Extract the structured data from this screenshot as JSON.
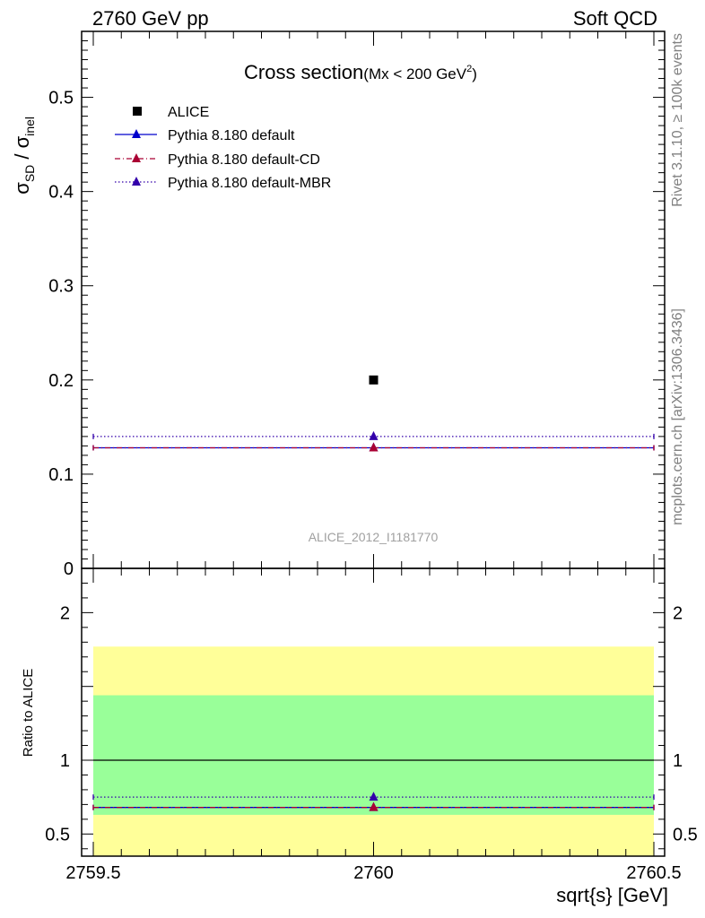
{
  "header": {
    "left": "2760 GeV pp",
    "right": "Soft QCD"
  },
  "side_labels": {
    "rivet": "Rivet 3.1.10, ≥ 100k events",
    "mcplots": "mcplots.cern.ch [arXiv:1306.3436]"
  },
  "title": {
    "main": "Cross section",
    "sub_prefix": "(Mx < 200 GeV",
    "sub_sup": "2",
    "sub_suffix": ")"
  },
  "watermark": "ALICE_2012_I1181770",
  "axes": {
    "xlabel": "sqrt{s} [GeV]",
    "ylabel_main": "σ",
    "ylabel_main_sub": "SD",
    "ylabel_sep": " / σ",
    "ylabel_den_sub": "inel",
    "ylabel_ratio": "Ratio to ALICE"
  },
  "legend": [
    {
      "label": "ALICE"
    },
    {
      "label": "Pythia 8.180 default"
    },
    {
      "label": "Pythia 8.180 default-CD"
    },
    {
      "label": "Pythia 8.180 default-MBR"
    }
  ],
  "colors": {
    "data": "#000000",
    "default": "#0000cc",
    "cd": "#aa0033",
    "mbr": "#3300aa",
    "band_outer": "#ffff99",
    "band_inner": "#99ff99"
  },
  "chart_data": [
    {
      "type": "line",
      "name": "main",
      "x_range": [
        2759.5,
        2760.5
      ],
      "ylim": [
        0,
        0.57
      ],
      "y_ticks": [
        0,
        0.1,
        0.2,
        0.3,
        0.4,
        0.5
      ],
      "y_tick_labels": [
        "0",
        "0.1",
        "0.2",
        "0.3",
        "0.4",
        "0.5"
      ],
      "data": {
        "name": "ALICE",
        "x": 2760,
        "y": 0.2
      },
      "series": [
        {
          "name": "Pythia 8.180 default",
          "x": 2760,
          "y": 0.128,
          "style": "solid"
        },
        {
          "name": "Pythia 8.180 default-CD",
          "x": 2760,
          "y": 0.128,
          "style": "dashdot"
        },
        {
          "name": "Pythia 8.180 default-MBR",
          "x": 2760,
          "y": 0.14,
          "style": "dotted"
        }
      ]
    },
    {
      "type": "line",
      "name": "ratio",
      "x_range": [
        2759.5,
        2760.5
      ],
      "ylim": [
        0.35,
        2.3
      ],
      "y_ticks": [
        0.5,
        1,
        1.5,
        2
      ],
      "y_tick_labels": [
        "0.5",
        "1",
        "",
        "2"
      ],
      "x_ticks": [
        2759.5,
        2760,
        2760.5
      ],
      "x_tick_labels": [
        "2759.5",
        "2760",
        "2760.5"
      ],
      "band_inner": [
        0.63,
        1.44
      ],
      "band_outer": [
        0.35,
        1.77
      ],
      "series": [
        {
          "name": "Pythia 8.180 default",
          "x": 2760,
          "y": 0.68,
          "style": "solid"
        },
        {
          "name": "Pythia 8.180 default-CD",
          "x": 2760,
          "y": 0.68,
          "style": "dashdot"
        },
        {
          "name": "Pythia 8.180 default-MBR",
          "x": 2760,
          "y": 0.75,
          "style": "dotted"
        }
      ]
    }
  ]
}
